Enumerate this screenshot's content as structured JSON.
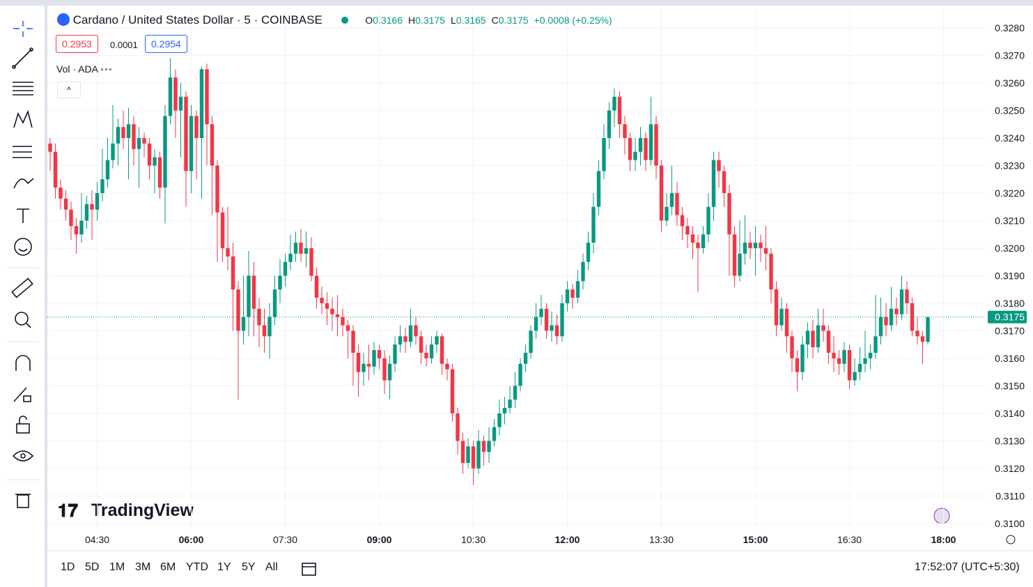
{
  "header": {
    "symbol": "Cardano / United States Dollar · 5 · COINBASE",
    "ohlc": [
      {
        "label": "O",
        "value": 0.3166
      },
      {
        "label": "H",
        "value": 0.3175
      },
      {
        "label": "L",
        "value": 0.3165
      },
      {
        "label": "C",
        "value": 0.3175
      }
    ],
    "change": "+0.0008 (+0.25%)",
    "bid": 0.2953,
    "spread": 0.0001,
    "ask": 0.2954,
    "indicator": "Vol · ADA"
  },
  "logo": "TradingView",
  "footer": {
    "ranges": [
      "1D",
      "5D",
      "1M",
      "3M",
      "6M",
      "YTD",
      "1Y",
      "5Y",
      "All"
    ],
    "clock": "17:52:07 (UTC+5:30)"
  },
  "chart_data": {
    "type": "candlestick",
    "categories": [
      null,
      null,
      null,
      null,
      null,
      null,
      null,
      null,
      null,
      "04:30",
      null,
      null,
      null,
      null,
      null,
      null,
      null,
      null,
      null,
      null,
      null,
      null,
      null,
      null,
      null,
      null,
      null,
      "06:00",
      null,
      null,
      null,
      null,
      null,
      null,
      null,
      null,
      null,
      null,
      null,
      null,
      null,
      null,
      null,
      null,
      null,
      "07:30",
      null,
      null,
      null,
      null,
      null,
      null,
      null,
      null,
      null,
      null,
      null,
      null,
      null,
      null,
      null,
      null,
      null,
      "09:00",
      null,
      null,
      null,
      null,
      null,
      null,
      null,
      null,
      null,
      null,
      null,
      null,
      null,
      null,
      null,
      null,
      null,
      "10:30",
      null,
      null,
      null,
      null,
      null,
      null,
      null,
      null,
      null,
      null,
      null,
      null,
      null,
      null,
      null,
      null,
      null,
      "12:00",
      null,
      null,
      null,
      null,
      null,
      null,
      null,
      null,
      null,
      null,
      null,
      null,
      null,
      null,
      null,
      null,
      null,
      "13:30",
      null,
      null,
      null,
      null,
      null,
      null,
      null,
      null,
      null,
      null,
      null,
      null,
      null,
      null,
      null,
      null,
      null,
      "15:00",
      null,
      null,
      null,
      null,
      null,
      null,
      null,
      null,
      null,
      null,
      null,
      null,
      null,
      null,
      null,
      null,
      null,
      "16:30",
      null,
      null,
      null,
      null,
      null,
      null,
      null,
      null,
      null,
      null,
      null,
      null,
      null,
      null,
      null,
      null,
      null,
      "18:00"
    ],
    "open": [
      0.3238,
      0.3235,
      0.3222,
      0.3218,
      0.3214,
      0.3208,
      0.3205,
      0.321,
      0.3216,
      0.3214,
      0.322,
      0.3225,
      0.3232,
      0.3238,
      0.3244,
      0.324,
      0.3245,
      0.3236,
      0.324,
      0.3238,
      0.323,
      0.3233,
      0.3222,
      0.3248,
      0.3262,
      0.325,
      0.3255,
      0.3228,
      0.3248,
      0.324,
      0.3265,
      0.3245,
      0.323,
      0.3213,
      0.32,
      0.3197,
      0.3185,
      0.317,
      0.3175,
      0.319,
      0.3178,
      0.3172,
      0.3168,
      0.3175,
      0.3185,
      0.319,
      0.3195,
      0.3198,
      0.3202,
      0.3198,
      0.32,
      0.319,
      0.3182,
      0.318,
      0.3178,
      0.3176,
      0.3175,
      0.3172,
      0.317,
      0.3162,
      0.3155,
      0.3158,
      0.3157,
      0.3163,
      0.316,
      0.3152,
      0.3158,
      0.3165,
      0.3168,
      0.3166,
      0.3172,
      0.3168,
      0.3162,
      0.316,
      0.3165,
      0.3168,
      0.3158,
      0.3156,
      0.314,
      0.313,
      0.3122,
      0.3128,
      0.312,
      0.313,
      0.3126,
      0.313,
      0.3135,
      0.314,
      0.3142,
      0.3145,
      0.315,
      0.3158,
      0.3162,
      0.317,
      0.3175,
      0.3178,
      0.317,
      0.3172,
      0.3168,
      0.318,
      0.3185,
      0.3182,
      0.3188,
      0.3195,
      0.3202,
      0.3215,
      0.3228,
      0.324,
      0.325,
      0.3255,
      0.3245,
      0.324,
      0.3232,
      0.3235,
      0.324,
      0.3232,
      0.3245,
      0.323,
      0.321,
      0.3215,
      0.322,
      0.3212,
      0.3208,
      0.3205,
      0.3202,
      0.32,
      0.3205,
      0.3215,
      0.3232,
      0.3228,
      0.322,
      0.3205,
      0.319,
      0.3198,
      0.3202,
      0.32,
      0.3202,
      0.32,
      0.3198,
      0.3185,
      0.3172,
      0.3178,
      0.3168,
      0.316,
      0.3155,
      0.3165,
      0.317,
      0.3164,
      0.3172,
      0.317,
      0.3162,
      0.316,
      0.3158,
      0.3163,
      0.3152,
      0.3155,
      0.3158,
      0.316,
      0.3162,
      0.3168,
      0.3175,
      0.3172,
      0.3178,
      0.3176,
      0.3185,
      0.318,
      0.317,
      0.3168,
      0.3166,
      null,
      null,
      null
    ],
    "high": [
      0.324,
      0.3238,
      0.3225,
      0.3221,
      0.3217,
      0.3211,
      0.322,
      0.3219,
      0.3221,
      0.3224,
      0.3236,
      0.324,
      0.3252,
      0.3247,
      0.325,
      0.3251,
      0.3248,
      0.3244,
      0.3242,
      0.324,
      0.3236,
      0.3235,
      0.3252,
      0.3269,
      0.3265,
      0.326,
      0.3257,
      0.3252,
      0.325,
      0.3266,
      0.3267,
      0.3248,
      0.3232,
      0.3215,
      0.3215,
      0.3202,
      0.3188,
      0.319,
      0.3199,
      0.3195,
      0.3182,
      0.3178,
      0.318,
      0.319,
      0.3196,
      0.3198,
      0.3205,
      0.3206,
      0.3207,
      0.3206,
      0.3204,
      0.3193,
      0.3186,
      0.3184,
      0.3182,
      0.3183,
      0.3178,
      0.3174,
      0.3172,
      0.3165,
      0.3162,
      0.3165,
      0.3166,
      0.3165,
      0.3163,
      0.3161,
      0.3168,
      0.3172,
      0.3171,
      0.3178,
      0.3175,
      0.317,
      0.3165,
      0.3168,
      0.317,
      0.3169,
      0.316,
      0.3158,
      0.3142,
      0.3133,
      0.3131,
      0.313,
      0.3134,
      0.3132,
      0.3135,
      0.3138,
      0.3145,
      0.3146,
      0.315,
      0.3155,
      0.316,
      0.3165,
      0.3172,
      0.318,
      0.3183,
      0.318,
      0.3177,
      0.3176,
      0.3183,
      0.3188,
      0.3187,
      0.3192,
      0.3198,
      0.3206,
      0.322,
      0.3232,
      0.3245,
      0.3253,
      0.3258,
      0.3257,
      0.3248,
      0.3242,
      0.324,
      0.3244,
      0.3242,
      0.3255,
      0.3248,
      0.3232,
      0.322,
      0.323,
      0.3224,
      0.3215,
      0.3211,
      0.3208,
      0.3205,
      0.3208,
      0.322,
      0.3235,
      0.3235,
      0.323,
      0.3223,
      0.3208,
      0.321,
      0.3212,
      0.3206,
      0.3208,
      0.3205,
      0.3208,
      0.32,
      0.3188,
      0.3182,
      0.318,
      0.317,
      0.3163,
      0.3168,
      0.3173,
      0.3174,
      0.3178,
      0.3178,
      0.3172,
      0.3168,
      0.3163,
      0.3166,
      0.3165,
      0.316,
      0.3164,
      0.317,
      0.3165,
      0.3183,
      0.3182,
      0.318,
      0.3186,
      0.3182,
      0.319,
      0.3188,
      0.3182,
      0.3175,
      0.317,
      0.3175,
      null,
      null,
      null
    ],
    "low": [
      0.3228,
      0.3218,
      0.3214,
      0.321,
      0.3203,
      0.3198,
      0.3202,
      0.3207,
      0.3203,
      0.321,
      0.3217,
      0.3222,
      0.3229,
      0.323,
      0.3236,
      0.3225,
      0.323,
      0.3222,
      0.3233,
      0.3225,
      0.322,
      0.3218,
      0.3209,
      0.3245,
      0.324,
      0.3233,
      0.3215,
      0.322,
      0.3225,
      0.3218,
      0.323,
      0.3212,
      0.3195,
      0.3195,
      0.3192,
      0.317,
      0.3145,
      0.3165,
      0.3168,
      0.3168,
      0.3164,
      0.3162,
      0.316,
      0.3172,
      0.318,
      0.3186,
      0.3192,
      0.3195,
      0.3195,
      0.3193,
      0.3188,
      0.3178,
      0.3176,
      0.3172,
      0.317,
      0.3168,
      0.3168,
      0.316,
      0.315,
      0.3146,
      0.315,
      0.3152,
      0.3154,
      0.3156,
      0.3147,
      0.3145,
      0.3155,
      0.3162,
      0.3162,
      0.3164,
      0.3165,
      0.3158,
      0.3157,
      0.3158,
      0.3162,
      0.3154,
      0.3152,
      0.3137,
      0.3125,
      0.3118,
      0.312,
      0.3114,
      0.3118,
      0.3121,
      0.3122,
      0.3128,
      0.3132,
      0.3136,
      0.314,
      0.3142,
      0.3148,
      0.3155,
      0.316,
      0.3167,
      0.3172,
      0.3167,
      0.3166,
      0.3165,
      0.3166,
      0.3177,
      0.3178,
      0.318,
      0.3185,
      0.3192,
      0.3198,
      0.3212,
      0.3225,
      0.3236,
      0.3244,
      0.324,
      0.3234,
      0.3228,
      0.3228,
      0.323,
      0.3228,
      0.323,
      0.3225,
      0.3206,
      0.3208,
      0.3212,
      0.3208,
      0.3203,
      0.32,
      0.3196,
      0.3184,
      0.3198,
      0.3202,
      0.321,
      0.3222,
      0.3215,
      0.319,
      0.3186,
      0.3188,
      0.3194,
      0.3196,
      0.319,
      0.3195,
      0.3192,
      0.318,
      0.3168,
      0.317,
      0.3162,
      0.3155,
      0.3148,
      0.3152,
      0.316,
      0.316,
      0.3162,
      0.3166,
      0.3158,
      0.3155,
      0.3154,
      0.3155,
      0.3149,
      0.315,
      0.3152,
      0.3155,
      0.3156,
      0.316,
      0.3165,
      0.3168,
      0.317,
      0.3172,
      0.3174,
      0.3176,
      0.3168,
      0.3165,
      0.3158,
      0.3165,
      null,
      null,
      null
    ],
    "close": [
      0.3235,
      0.3222,
      0.3218,
      0.3214,
      0.3208,
      0.3205,
      0.321,
      0.3216,
      0.3214,
      0.322,
      0.3225,
      0.3232,
      0.3238,
      0.3244,
      0.324,
      0.3245,
      0.3236,
      0.324,
      0.3238,
      0.323,
      0.3233,
      0.3222,
      0.3248,
      0.3262,
      0.325,
      0.3255,
      0.3228,
      0.3248,
      0.324,
      0.3265,
      0.3245,
      0.323,
      0.3213,
      0.32,
      0.3197,
      0.3185,
      0.317,
      0.3175,
      0.319,
      0.3178,
      0.3172,
      0.3168,
      0.3175,
      0.3185,
      0.319,
      0.3195,
      0.3198,
      0.3202,
      0.3198,
      0.32,
      0.319,
      0.3182,
      0.318,
      0.3178,
      0.3176,
      0.3175,
      0.3172,
      0.317,
      0.3162,
      0.3155,
      0.3158,
      0.3157,
      0.3163,
      0.316,
      0.3152,
      0.3158,
      0.3165,
      0.3168,
      0.3166,
      0.3172,
      0.3168,
      0.3162,
      0.316,
      0.3165,
      0.3168,
      0.3158,
      0.3156,
      0.314,
      0.313,
      0.3122,
      0.3128,
      0.312,
      0.313,
      0.3126,
      0.313,
      0.3135,
      0.314,
      0.3142,
      0.3145,
      0.315,
      0.3158,
      0.3162,
      0.317,
      0.3175,
      0.3178,
      0.317,
      0.3172,
      0.3168,
      0.318,
      0.3185,
      0.3182,
      0.3188,
      0.3195,
      0.3202,
      0.3215,
      0.3228,
      0.324,
      0.325,
      0.3255,
      0.3245,
      0.324,
      0.3232,
      0.3235,
      0.324,
      0.3232,
      0.3245,
      0.323,
      0.321,
      0.3215,
      0.322,
      0.3212,
      0.3208,
      0.3205,
      0.3202,
      0.32,
      0.3205,
      0.3215,
      0.3232,
      0.3228,
      0.322,
      0.3205,
      0.319,
      0.3198,
      0.3202,
      0.32,
      0.3202,
      0.32,
      0.3198,
      0.3185,
      0.3172,
      0.3178,
      0.3168,
      0.316,
      0.3155,
      0.3165,
      0.317,
      0.3164,
      0.3172,
      0.317,
      0.3162,
      0.316,
      0.3158,
      0.3163,
      0.3152,
      0.3155,
      0.3158,
      0.316,
      0.3162,
      0.3168,
      0.3175,
      0.3172,
      0.3178,
      0.3176,
      0.3185,
      0.318,
      0.317,
      0.3168,
      0.3166,
      0.3175,
      null,
      null,
      null
    ],
    "up_color": "#089981",
    "down_color": "#f23645",
    "ylim": [
      0.30977,
      0.32876
    ],
    "yticks": [
      {
        "value": 0.31,
        "label": "0.3100"
      },
      {
        "value": 0.311,
        "label": "0.3110"
      },
      {
        "value": 0.312,
        "label": "0.3120"
      },
      {
        "value": 0.313,
        "label": "0.3130"
      },
      {
        "value": 0.314,
        "label": "0.3140"
      },
      {
        "value": 0.315,
        "label": "0.3150"
      },
      {
        "value": 0.316,
        "label": "0.3160"
      },
      {
        "value": 0.317,
        "label": "0.3170"
      },
      {
        "value": 0.318,
        "label": "0.3180"
      },
      {
        "value": 0.319,
        "label": "0.3190"
      },
      {
        "value": 0.32,
        "label": "0.3200"
      },
      {
        "value": 0.321,
        "label": "0.3210"
      },
      {
        "value": 0.322,
        "label": "0.3220"
      },
      {
        "value": 0.323,
        "label": "0.3230"
      },
      {
        "value": 0.324,
        "label": "0.3240"
      },
      {
        "value": 0.325,
        "label": "0.3250"
      },
      {
        "value": 0.326,
        "label": "0.3260"
      },
      {
        "value": 0.327,
        "label": "0.3270"
      },
      {
        "value": 0.328,
        "label": "0.3280"
      }
    ],
    "grid": true,
    "last_price": 0.3175
  }
}
